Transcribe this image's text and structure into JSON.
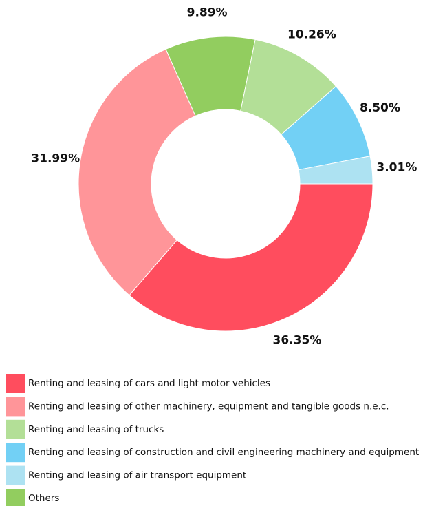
{
  "chart_data": {
    "type": "donut",
    "categories": [
      "Renting and leasing of cars and light motor vehicles",
      "Renting and leasing of other machinery, equipment and tangible goods n.e.c.",
      "Others",
      "Renting and leasing of trucks",
      "Renting and leasing of construction and civil engineering machinery and equipment",
      "Renting and leasing of air transport equipment"
    ],
    "values": [
      36.35,
      31.99,
      9.89,
      10.26,
      8.5,
      3.01
    ],
    "value_labels": [
      "36.35%",
      "31.99%",
      "9.89%",
      "10.26%",
      "8.50%",
      "3.01%"
    ],
    "colors": [
      "#ff4d5e",
      "#ff9599",
      "#92cd5f",
      "#b3df97",
      "#72d0f5",
      "#ade2f2"
    ]
  }
}
